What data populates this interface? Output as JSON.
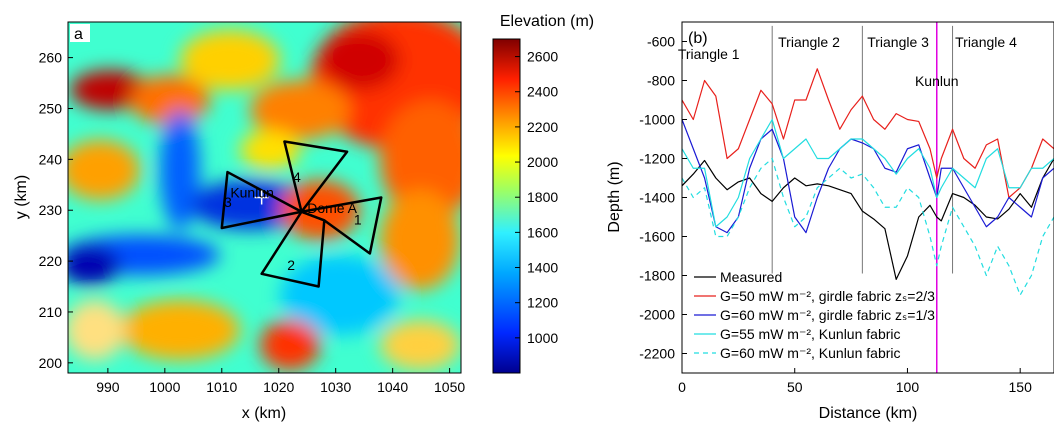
{
  "chart_data": [
    {
      "type": "heatmap",
      "panel_label": "a",
      "xlabel": "x (km)",
      "ylabel": "y (km)",
      "xlim": [
        983,
        1052
      ],
      "ylim": [
        198,
        267
      ],
      "xticks": [
        990,
        1000,
        1010,
        1020,
        1030,
        1040,
        1050
      ],
      "yticks": [
        200,
        210,
        220,
        230,
        240,
        250,
        260
      ],
      "colorbar": {
        "title": "Elevation (m)",
        "ticks": [
          1000,
          1200,
          1400,
          1600,
          1800,
          2000,
          2200,
          2400,
          2600
        ],
        "range": [
          800,
          2700
        ]
      },
      "annotations": [
        {
          "text": "Kunlun",
          "x": 1011.5,
          "y": 232.5
        },
        {
          "text": "Dome A",
          "x": 1025,
          "y": 229.5
        },
        {
          "text": "1",
          "x": 1033.2,
          "y": 227.2
        },
        {
          "text": "2",
          "x": 1021.5,
          "y": 218.2
        },
        {
          "text": "3",
          "x": 1010.4,
          "y": 230.6
        },
        {
          "text": "4",
          "x": 1022.5,
          "y": 235.5
        }
      ],
      "triangles": [
        [
          [
            1024,
            229.7
          ],
          [
            1038,
            232.5
          ],
          [
            1036,
            221.5
          ],
          [
            1028,
            228
          ]
        ],
        [
          [
            1024,
            229.7
          ],
          [
            1017,
            217.5
          ],
          [
            1027,
            215
          ],
          [
            1028,
            228
          ]
        ],
        [
          [
            1024,
            229.7
          ],
          [
            1010,
            226.5
          ],
          [
            1011,
            237.5
          ],
          [
            1024,
            229.7
          ]
        ],
        [
          [
            1024,
            229.7
          ],
          [
            1021,
            243.5
          ],
          [
            1032,
            241.5
          ],
          [
            1024,
            229.7
          ]
        ]
      ],
      "kunlun_marker": {
        "x": 1017,
        "y": 232.5
      }
    },
    {
      "type": "line",
      "panel_label": "(b)",
      "xlabel": "Distance (km)",
      "ylabel": "Depth (m)",
      "xlim": [
        0,
        165
      ],
      "ylim": [
        -2300,
        -500
      ],
      "xticks": [
        0,
        50,
        100,
        150
      ],
      "yticks": [
        -600,
        -800,
        -1000,
        -1200,
        -1400,
        -1600,
        -1800,
        -2000,
        -2200
      ],
      "section_labels": [
        {
          "text": "Triangle 1",
          "x": 15
        },
        {
          "text": "Triangle 2",
          "x": 59.5
        },
        {
          "text": "Triangle 3",
          "x": 99
        },
        {
          "text": "Triangle 4",
          "x": 138
        }
      ],
      "vertical_lines": [
        {
          "x": 40,
          "color": "#777777"
        },
        {
          "x": 80,
          "color": "#777777"
        },
        {
          "x": 113,
          "color": "#e000e0"
        },
        {
          "x": 120,
          "color": "#777777"
        }
      ],
      "kunlun_label": {
        "text": "Kunlun",
        "x": 113
      },
      "series": [
        {
          "name": "Measured",
          "color": "#000000",
          "dash": false,
          "x": [
            0,
            5,
            10,
            15,
            20,
            25,
            30,
            35,
            40,
            45,
            50,
            55,
            60,
            65,
            70,
            75,
            80,
            85,
            90,
            95,
            100,
            105,
            110,
            113,
            115,
            120,
            125,
            130,
            135,
            140,
            145,
            150,
            155,
            160,
            165
          ],
          "y": [
            -1340,
            -1280,
            -1210,
            -1300,
            -1360,
            -1320,
            -1300,
            -1380,
            -1420,
            -1350,
            -1300,
            -1340,
            -1330,
            -1340,
            -1360,
            -1380,
            -1470,
            -1510,
            -1560,
            -1820,
            -1700,
            -1500,
            -1440,
            -1500,
            -1520,
            -1380,
            -1400,
            -1440,
            -1500,
            -1510,
            -1460,
            -1380,
            -1450,
            -1300,
            -1200
          ]
        },
        {
          "name": "G=50 mW m⁻², girdle fabric zₛ=2/3",
          "color": "#e8201c",
          "dash": false,
          "x": [
            0,
            5,
            10,
            15,
            20,
            25,
            30,
            35,
            40,
            45,
            50,
            55,
            60,
            65,
            70,
            75,
            80,
            85,
            90,
            95,
            100,
            105,
            110,
            113,
            115,
            120,
            125,
            130,
            135,
            140,
            145,
            150,
            155,
            160,
            165
          ],
          "y": [
            -900,
            -1000,
            -800,
            -880,
            -1200,
            -1150,
            -1000,
            -850,
            -920,
            -1100,
            -900,
            -900,
            -740,
            -900,
            -1050,
            -950,
            -880,
            -1000,
            -1050,
            -970,
            -1000,
            -1010,
            -1150,
            -1300,
            -1200,
            -1050,
            -1200,
            -1250,
            -1130,
            -1100,
            -1400,
            -1350,
            -1250,
            -1100,
            -1150
          ]
        },
        {
          "name": "G=60 mW m⁻², girdle fabric zₛ=1/3",
          "color": "#1a1ad4",
          "dash": false,
          "x": [
            0,
            5,
            10,
            15,
            20,
            25,
            30,
            35,
            40,
            45,
            50,
            55,
            60,
            65,
            70,
            75,
            80,
            85,
            90,
            95,
            100,
            105,
            110,
            113,
            115,
            120,
            125,
            130,
            135,
            140,
            145,
            150,
            155,
            160,
            165
          ],
          "y": [
            -1000,
            -1150,
            -1300,
            -1550,
            -1580,
            -1500,
            -1250,
            -1100,
            -1050,
            -1200,
            -1500,
            -1580,
            -1400,
            -1250,
            -1150,
            -1100,
            -1120,
            -1150,
            -1250,
            -1270,
            -1150,
            -1130,
            -1300,
            -1400,
            -1250,
            -1250,
            -1350,
            -1450,
            -1550,
            -1500,
            -1400,
            -1450,
            -1500,
            -1300,
            -1250
          ]
        },
        {
          "name": "G=55 mW m⁻², Kunlun fabric",
          "color": "#22dde0",
          "dash": false,
          "x": [
            0,
            5,
            10,
            15,
            20,
            25,
            30,
            35,
            40,
            45,
            50,
            55,
            60,
            65,
            70,
            75,
            80,
            85,
            90,
            95,
            100,
            105,
            110,
            113,
            115,
            120,
            125,
            130,
            135,
            140,
            145,
            150,
            155,
            160,
            165
          ],
          "y": [
            -1150,
            -1250,
            -1250,
            -1550,
            -1500,
            -1400,
            -1200,
            -1100,
            -1000,
            -1200,
            -1150,
            -1100,
            -1200,
            -1200,
            -1150,
            -1100,
            -1100,
            -1150,
            -1200,
            -1280,
            -1200,
            -1150,
            -1250,
            -1400,
            -1350,
            -1250,
            -1300,
            -1350,
            -1200,
            -1150,
            -1350,
            -1350,
            -1250,
            -1250,
            -1200
          ]
        },
        {
          "name": "G=60 mW m⁻², Kunlun fabric",
          "color": "#22dde0",
          "dash": true,
          "x": [
            0,
            5,
            10,
            15,
            20,
            25,
            30,
            35,
            40,
            45,
            50,
            55,
            60,
            65,
            70,
            75,
            80,
            85,
            90,
            95,
            100,
            105,
            110,
            113,
            115,
            120,
            125,
            130,
            135,
            140,
            145,
            150,
            155,
            160,
            165
          ],
          "y": [
            -1300,
            -1400,
            -1350,
            -1600,
            -1600,
            -1500,
            -1350,
            -1250,
            -1200,
            -1400,
            -1550,
            -1500,
            -1350,
            -1300,
            -1250,
            -1300,
            -1280,
            -1350,
            -1450,
            -1450,
            -1350,
            -1400,
            -1600,
            -1750,
            -1650,
            -1450,
            -1550,
            -1650,
            -1800,
            -1650,
            -1750,
            -1900,
            -1800,
            -1600,
            -1500
          ]
        }
      ]
    }
  ]
}
